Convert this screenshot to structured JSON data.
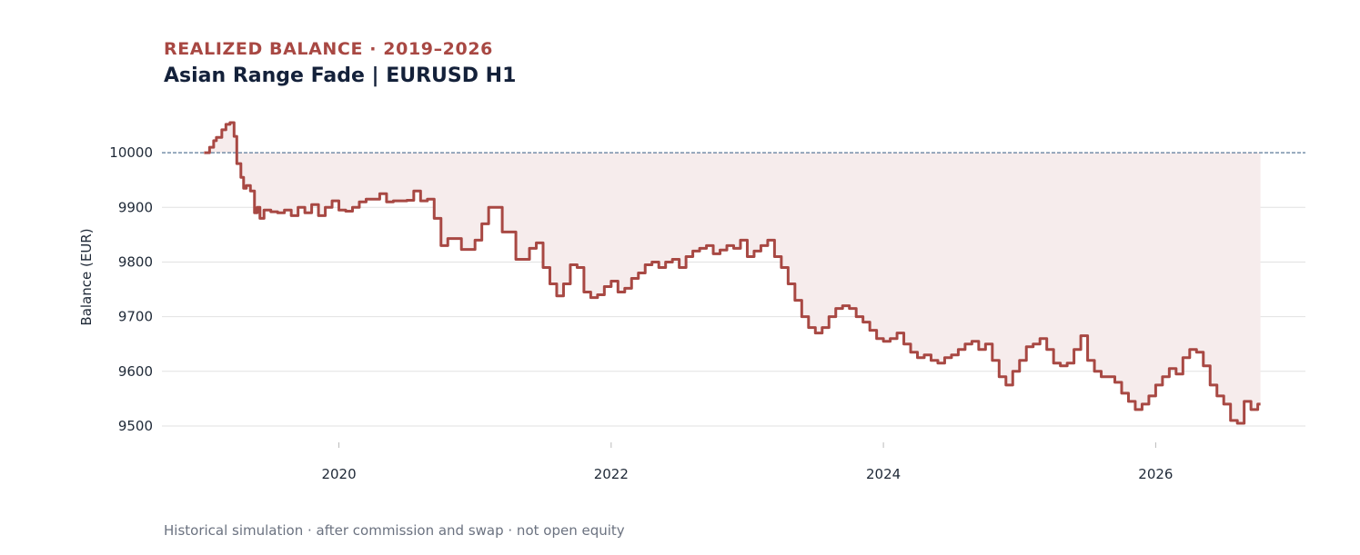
{
  "header": {
    "eyebrow": "REALIZED BALANCE · 2019–2026",
    "title": "Asian Range Fade | EURUSD H1"
  },
  "footnote": "Historical simulation · after commission and swap · not open equity",
  "colors": {
    "line": "#a84843",
    "fill": "#f6ecec",
    "baseline": "#5b7a99",
    "grid": "#e2e2e2",
    "eyebrow": "#a84843",
    "title": "#14213a"
  },
  "chart_data": {
    "type": "line",
    "ylabel": "Balance (EUR)",
    "xlabel": "",
    "xlim": [
      2018.7,
      2027.1
    ],
    "ylim": [
      9470,
      10080
    ],
    "x_ticks": [
      2020,
      2022,
      2024,
      2026
    ],
    "x_tick_labels": [
      "2020",
      "2022",
      "2024",
      "2026"
    ],
    "y_ticks": [
      9500,
      9600,
      9700,
      9800,
      9900,
      10000
    ],
    "y_tick_labels": [
      "9500",
      "9600",
      "9700",
      "9800",
      "9900",
      "10000"
    ],
    "baseline": 10000,
    "grid": true,
    "series": [
      {
        "step": true,
        "x": [
          2019.01,
          2019.05,
          2019.08,
          2019.1,
          2019.14,
          2019.17,
          2019.2,
          2019.23,
          2019.25,
          2019.28,
          2019.3,
          2019.32,
          2019.35,
          2019.38,
          2019.4,
          2019.42,
          2019.45,
          2019.5,
          2019.55,
          2019.6,
          2019.65,
          2019.7,
          2019.75,
          2019.8,
          2019.85,
          2019.9,
          2019.95,
          2020.0,
          2020.05,
          2020.1,
          2020.15,
          2020.2,
          2020.3,
          2020.35,
          2020.4,
          2020.5,
          2020.55,
          2020.6,
          2020.65,
          2020.7,
          2020.75,
          2020.8,
          2020.9,
          2021.0,
          2021.05,
          2021.1,
          2021.2,
          2021.3,
          2021.4,
          2021.45,
          2021.5,
          2021.55,
          2021.6,
          2021.65,
          2021.7,
          2021.75,
          2021.8,
          2021.85,
          2021.9,
          2021.95,
          2022.0,
          2022.05,
          2022.1,
          2022.15,
          2022.2,
          2022.25,
          2022.3,
          2022.35,
          2022.4,
          2022.45,
          2022.5,
          2022.55,
          2022.6,
          2022.65,
          2022.7,
          2022.75,
          2022.8,
          2022.85,
          2022.9,
          2022.95,
          2023.0,
          2023.05,
          2023.1,
          2023.15,
          2023.2,
          2023.25,
          2023.3,
          2023.35,
          2023.4,
          2023.45,
          2023.5,
          2023.55,
          2023.6,
          2023.65,
          2023.7,
          2023.75,
          2023.8,
          2023.85,
          2023.9,
          2023.95,
          2024.0,
          2024.05,
          2024.1,
          2024.15,
          2024.2,
          2024.25,
          2024.3,
          2024.35,
          2024.4,
          2024.45,
          2024.5,
          2024.55,
          2024.6,
          2024.65,
          2024.7,
          2024.75,
          2024.8,
          2024.85,
          2024.9,
          2024.95,
          2025.0,
          2025.05,
          2025.1,
          2025.15,
          2025.2,
          2025.25,
          2025.3,
          2025.35,
          2025.4,
          2025.45,
          2025.5,
          2025.55,
          2025.6,
          2025.7,
          2025.75,
          2025.8,
          2025.85,
          2025.9,
          2025.95,
          2026.0,
          2026.05,
          2026.1,
          2026.15,
          2026.2,
          2026.25,
          2026.3,
          2026.35,
          2026.4,
          2026.45,
          2026.5,
          2026.55,
          2026.6,
          2026.65,
          2026.7,
          2026.75
        ],
        "y": [
          10000,
          10010,
          10022,
          10028,
          10042,
          10052,
          10055,
          10030,
          9980,
          9955,
          9935,
          9940,
          9930,
          9890,
          9900,
          9880,
          9895,
          9892,
          9890,
          9895,
          9885,
          9900,
          9890,
          9905,
          9885,
          9900,
          9912,
          9895,
          9893,
          9900,
          9910,
          9915,
          9925,
          9910,
          9912,
          9913,
          9930,
          9912,
          9915,
          9880,
          9830,
          9843,
          9823,
          9840,
          9870,
          9900,
          9855,
          9805,
          9825,
          9835,
          9790,
          9760,
          9738,
          9760,
          9795,
          9790,
          9745,
          9735,
          9740,
          9755,
          9765,
          9745,
          9752,
          9770,
          9780,
          9795,
          9800,
          9790,
          9800,
          9805,
          9790,
          9810,
          9820,
          9825,
          9830,
          9815,
          9822,
          9830,
          9825,
          9840,
          9810,
          9820,
          9830,
          9840,
          9810,
          9790,
          9760,
          9730,
          9700,
          9680,
          9670,
          9680,
          9700,
          9715,
          9720,
          9715,
          9700,
          9690,
          9675,
          9660,
          9655,
          9660,
          9670,
          9650,
          9635,
          9625,
          9630,
          9620,
          9615,
          9625,
          9630,
          9640,
          9650,
          9655,
          9640,
          9650,
          9620,
          9590,
          9575,
          9600,
          9620,
          9645,
          9650,
          9660,
          9640,
          9615,
          9610,
          9615,
          9640,
          9665,
          9620,
          9600,
          9590,
          9580,
          9560,
          9545,
          9530,
          9540,
          9555,
          9575,
          9590,
          9605,
          9595,
          9625,
          9640,
          9635,
          9610,
          9575,
          9555,
          9540,
          9510,
          9505,
          9545,
          9530,
          9540
        ]
      }
    ]
  }
}
